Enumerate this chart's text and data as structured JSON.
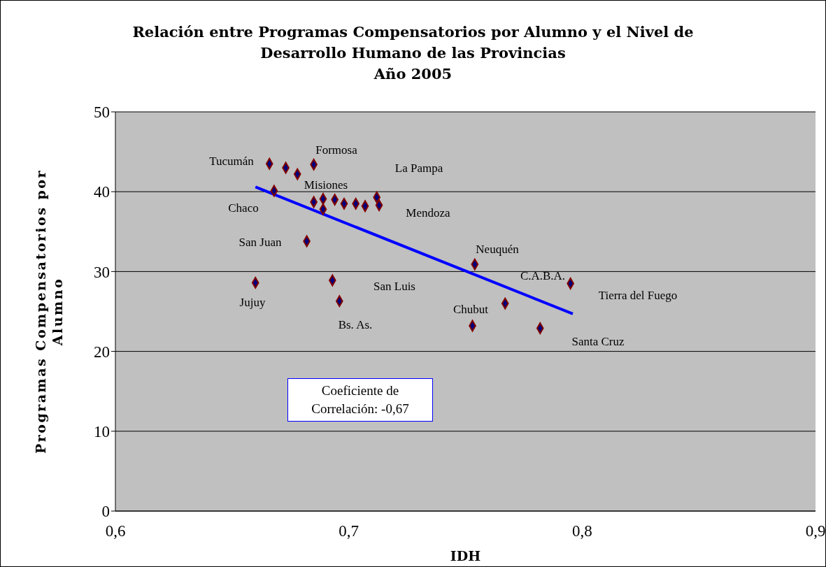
{
  "chart_data": {
    "type": "scatter",
    "title": "Relación entre Programas Compensatorios  por Alumno y el Nivel de\nDesarrollo Humano de las Provincias\nAño 2005",
    "xlabel": "IDH",
    "ylabel": "Programas Compensatorios por Alumno",
    "xlim": [
      0.6,
      0.9
    ],
    "xticks": [
      {
        "value": 0.6,
        "label": "0,6"
      },
      {
        "value": 0.7,
        "label": "0,7"
      },
      {
        "value": 0.8,
        "label": "0,8"
      },
      {
        "value": 0.9,
        "label": "0,9"
      }
    ],
    "ylim": [
      0,
      50
    ],
    "yticks": [
      0,
      10,
      20,
      30,
      40,
      50
    ],
    "grid": "y",
    "marker": "diamond",
    "legend": false,
    "series": [
      {
        "color": "#000080",
        "x": [
          0.666,
          0.668,
          0.673,
          0.678,
          0.685,
          0.685,
          0.689,
          0.689,
          0.694,
          0.698,
          0.703,
          0.707,
          0.712,
          0.713,
          0.682,
          0.66,
          0.693,
          0.696,
          0.754,
          0.795,
          0.767,
          0.753,
          0.782
        ],
        "values": [
          43.5,
          40.1,
          43.0,
          42.2,
          43.4,
          38.7,
          39.1,
          37.8,
          39.0,
          38.5,
          38.5,
          38.2,
          39.3,
          38.3,
          33.8,
          28.6,
          28.9,
          26.3,
          30.9,
          28.5,
          26.0,
          23.2,
          22.9
        ]
      },
      {
        "type": "line",
        "marker": "none",
        "color": "#0000ff",
        "x": [
          0.66,
          0.796
        ],
        "values": [
          40.6,
          24.7
        ]
      }
    ],
    "annotations": [
      "Tucumán",
      "Formosa",
      "La Pampa",
      "Misiones",
      "Chaco",
      "Mendoza",
      "San Juan",
      "Neuquén",
      "San Luis",
      "C.A.B.A.",
      "Tierra del Fuego",
      "Jujuy",
      "Chubut",
      "Bs. As.",
      "Santa Cruz",
      "Coeficiente de Correlación: -0,67"
    ]
  }
}
